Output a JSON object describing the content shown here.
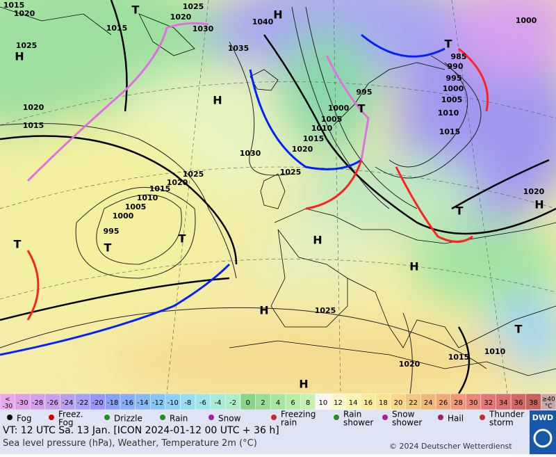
{
  "map": {
    "labels": [
      "1015",
      "1020",
      "1025",
      "H",
      "T",
      "1015",
      "1020",
      "1025",
      "1030",
      "1040",
      "H",
      "1035",
      "1000",
      "985",
      "990",
      "995",
      "1000",
      "1005",
      "1010",
      "1015",
      "995",
      "1000",
      "1005",
      "1010",
      "1015",
      "1020",
      "1025",
      "1030",
      "H",
      "1020",
      "1015",
      "1025",
      "1020",
      "1015",
      "1010",
      "1005",
      "1000",
      "995",
      "T",
      "T",
      "T",
      "H",
      "H",
      "T",
      "T",
      "H",
      "1020",
      "T",
      "1010",
      "1015",
      "1025",
      "H",
      "H",
      "1020",
      "T"
    ]
  },
  "scale": {
    "below": {
      "lines": [
        "<",
        "-30"
      ],
      "color": "#e8a8ec"
    },
    "cells": [
      {
        "label": "-30",
        "color": "#e0a0e8"
      },
      {
        "label": "-28",
        "color": "#d4a0ec"
      },
      {
        "label": "-26",
        "color": "#c8a0f0"
      },
      {
        "label": "-24",
        "color": "#b8a0f0"
      },
      {
        "label": "-22",
        "color": "#a8a0f4"
      },
      {
        "label": "-20",
        "color": "#9898f4"
      },
      {
        "label": "-18",
        "color": "#8ca0f4"
      },
      {
        "label": "-16",
        "color": "#88acf8"
      },
      {
        "label": "-14",
        "color": "#88b8f8"
      },
      {
        "label": "-12",
        "color": "#88c4f8"
      },
      {
        "label": "-10",
        "color": "#90d0f8"
      },
      {
        "label": "-8",
        "color": "#98dcf0"
      },
      {
        "label": "-6",
        "color": "#a0e4e8"
      },
      {
        "label": "-4",
        "color": "#a8ecd8"
      },
      {
        "label": "-2",
        "color": "#b0ecc8"
      },
      {
        "label": "0",
        "color": "#88d488"
      },
      {
        "label": "2",
        "color": "#98dc98"
      },
      {
        "label": "4",
        "color": "#a8e4a0"
      },
      {
        "label": "6",
        "color": "#b8eca8"
      },
      {
        "label": "8",
        "color": "#c8f0b4"
      },
      {
        "label": "10",
        "color": "#f8f8f0"
      },
      {
        "label": "12",
        "color": "#f8f8cc"
      },
      {
        "label": "14",
        "color": "#f8f4b4"
      },
      {
        "label": "16",
        "color": "#f8ec9c"
      },
      {
        "label": "18",
        "color": "#f8e490"
      },
      {
        "label": "20",
        "color": "#f8d888"
      },
      {
        "label": "22",
        "color": "#f0c880"
      },
      {
        "label": "24",
        "color": "#f0b878"
      },
      {
        "label": "26",
        "color": "#f0a878"
      },
      {
        "label": "28",
        "color": "#f09878"
      },
      {
        "label": "30",
        "color": "#e88878"
      },
      {
        "label": "32",
        "color": "#e07878"
      },
      {
        "label": "34",
        "color": "#d87070"
      },
      {
        "label": "36",
        "color": "#d06868"
      },
      {
        "label": "38",
        "color": "#c86060"
      }
    ],
    "above": {
      "lines": [
        "≥40",
        "°C"
      ],
      "color": "#c8a8a8"
    }
  },
  "legend": [
    {
      "lines": [
        "Fog"
      ]
    },
    {
      "lines": [
        "Freez.",
        "Fog"
      ]
    },
    {
      "lines": [
        "Drizzle"
      ]
    },
    {
      "lines": [
        "Rain"
      ]
    },
    {
      "lines": [
        "Snow"
      ]
    },
    {
      "lines": [
        "Freezing",
        "rain"
      ]
    },
    {
      "lines": [
        "Rain",
        "shower"
      ]
    },
    {
      "lines": [
        "Snow",
        "shower"
      ]
    },
    {
      "lines": [
        "Hail"
      ]
    },
    {
      "lines": [
        "Thunder",
        "storm"
      ]
    }
  ],
  "footer": {
    "valid": "VT: 12 UTC Sa.  13 Jan. [ICON 2024-01-12  00 UTC + 36 h]",
    "product": "Sea level pressure (hPa), Weather, Temperature 2m (°C)",
    "copyright": "© 2024 Deutscher Wetterdienst",
    "logo": "DWD"
  }
}
